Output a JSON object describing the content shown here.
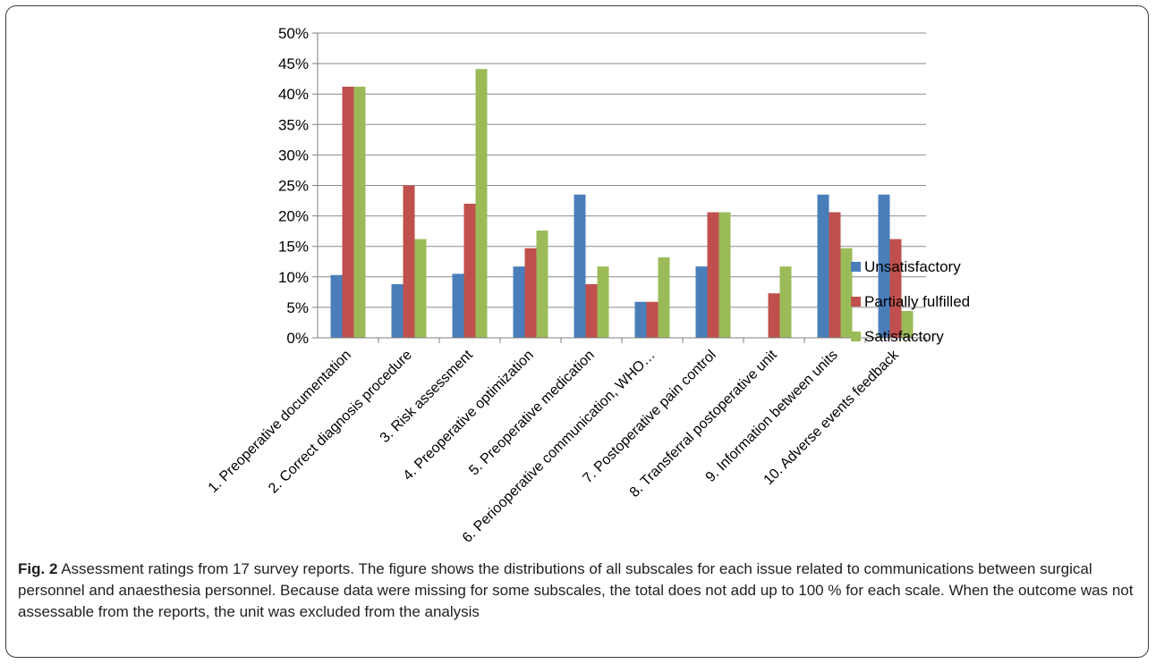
{
  "chart_data": {
    "type": "bar",
    "title": "",
    "xlabel": "",
    "ylabel": "",
    "ylim": [
      0,
      50
    ],
    "y_ticks": [
      "0%",
      "5%",
      "10%",
      "15%",
      "20%",
      "25%",
      "30%",
      "35%",
      "40%",
      "45%",
      "50%"
    ],
    "grid": true,
    "legend_position": "right",
    "categories": [
      "1. Preoperative documentation",
      "2. Correct diagnosis procedure",
      "3. Risk assessment",
      "4. Preoperative optimization",
      "5. Preoperative medication",
      "6. Periooperative communication, WHO…",
      "7. Postoperative pain control",
      "8. Transferral postoperative unit",
      "9. Information  between units",
      "10. Adverse events feedback"
    ],
    "series": [
      {
        "name": "Unsatisfactory",
        "color": "#4a7ebb",
        "values": [
          10.3,
          8.8,
          10.5,
          11.7,
          23.5,
          5.9,
          11.7,
          0,
          23.5,
          23.5
        ]
      },
      {
        "name": "Partially fulfilled",
        "color": "#c0504d",
        "values": [
          41.2,
          25.0,
          22.0,
          14.7,
          8.8,
          5.9,
          20.6,
          7.3,
          20.6,
          16.2
        ]
      },
      {
        "name": "Satisfactory",
        "color": "#9bbb59",
        "values": [
          41.2,
          16.2,
          44.1,
          17.6,
          11.7,
          13.2,
          20.6,
          11.7,
          14.7,
          4.4
        ]
      }
    ]
  },
  "caption": {
    "label": "Fig. 2",
    "text": " Assessment ratings from 17 survey reports. The figure shows the distributions of all subscales for each issue related to communications between surgical personnel and anaesthesia personnel. Because data were missing for some subscales, the total does not add up to 100 % for each scale. When the outcome was not assessable from the reports, the unit was excluded from the analysis"
  }
}
